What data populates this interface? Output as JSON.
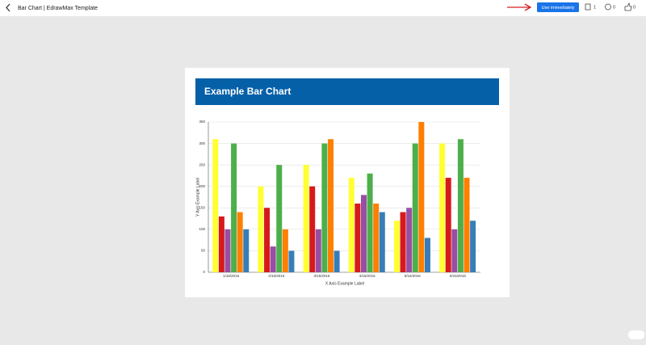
{
  "header": {
    "title": "Bar Chart | EdrawMax Template",
    "button": "Use immediately",
    "copies": 1,
    "comments": 0,
    "likes": 0
  },
  "chart_data": {
    "type": "bar",
    "title": "Example Bar Chart",
    "x_label": "X Axis Example Label",
    "y_label": "Y Axis Example Label",
    "categories": [
      "1/15/2016",
      "2/15/2016",
      "3/15/2016",
      "4/15/2016",
      "5/15/2016",
      "6/15/2016"
    ],
    "series": [
      {
        "color": "#ffff33",
        "values": [
          310,
          200,
          250,
          220,
          120,
          300
        ]
      },
      {
        "color": "#d7191c",
        "values": [
          130,
          150,
          200,
          160,
          140,
          220
        ]
      },
      {
        "color": "#984ea3",
        "values": [
          100,
          60,
          100,
          180,
          150,
          100
        ]
      },
      {
        "color": "#4daf4a",
        "values": [
          300,
          250,
          300,
          230,
          300,
          310
        ]
      },
      {
        "color": "#ff7f00",
        "values": [
          140,
          100,
          310,
          160,
          350,
          220
        ]
      },
      {
        "color": "#377eb8",
        "values": [
          100,
          50,
          50,
          140,
          80,
          120
        ]
      }
    ],
    "ylim": [
      0,
      350
    ],
    "yticks": [
      0,
      50,
      100,
      150,
      200,
      250,
      300,
      350
    ],
    "grid": true
  }
}
